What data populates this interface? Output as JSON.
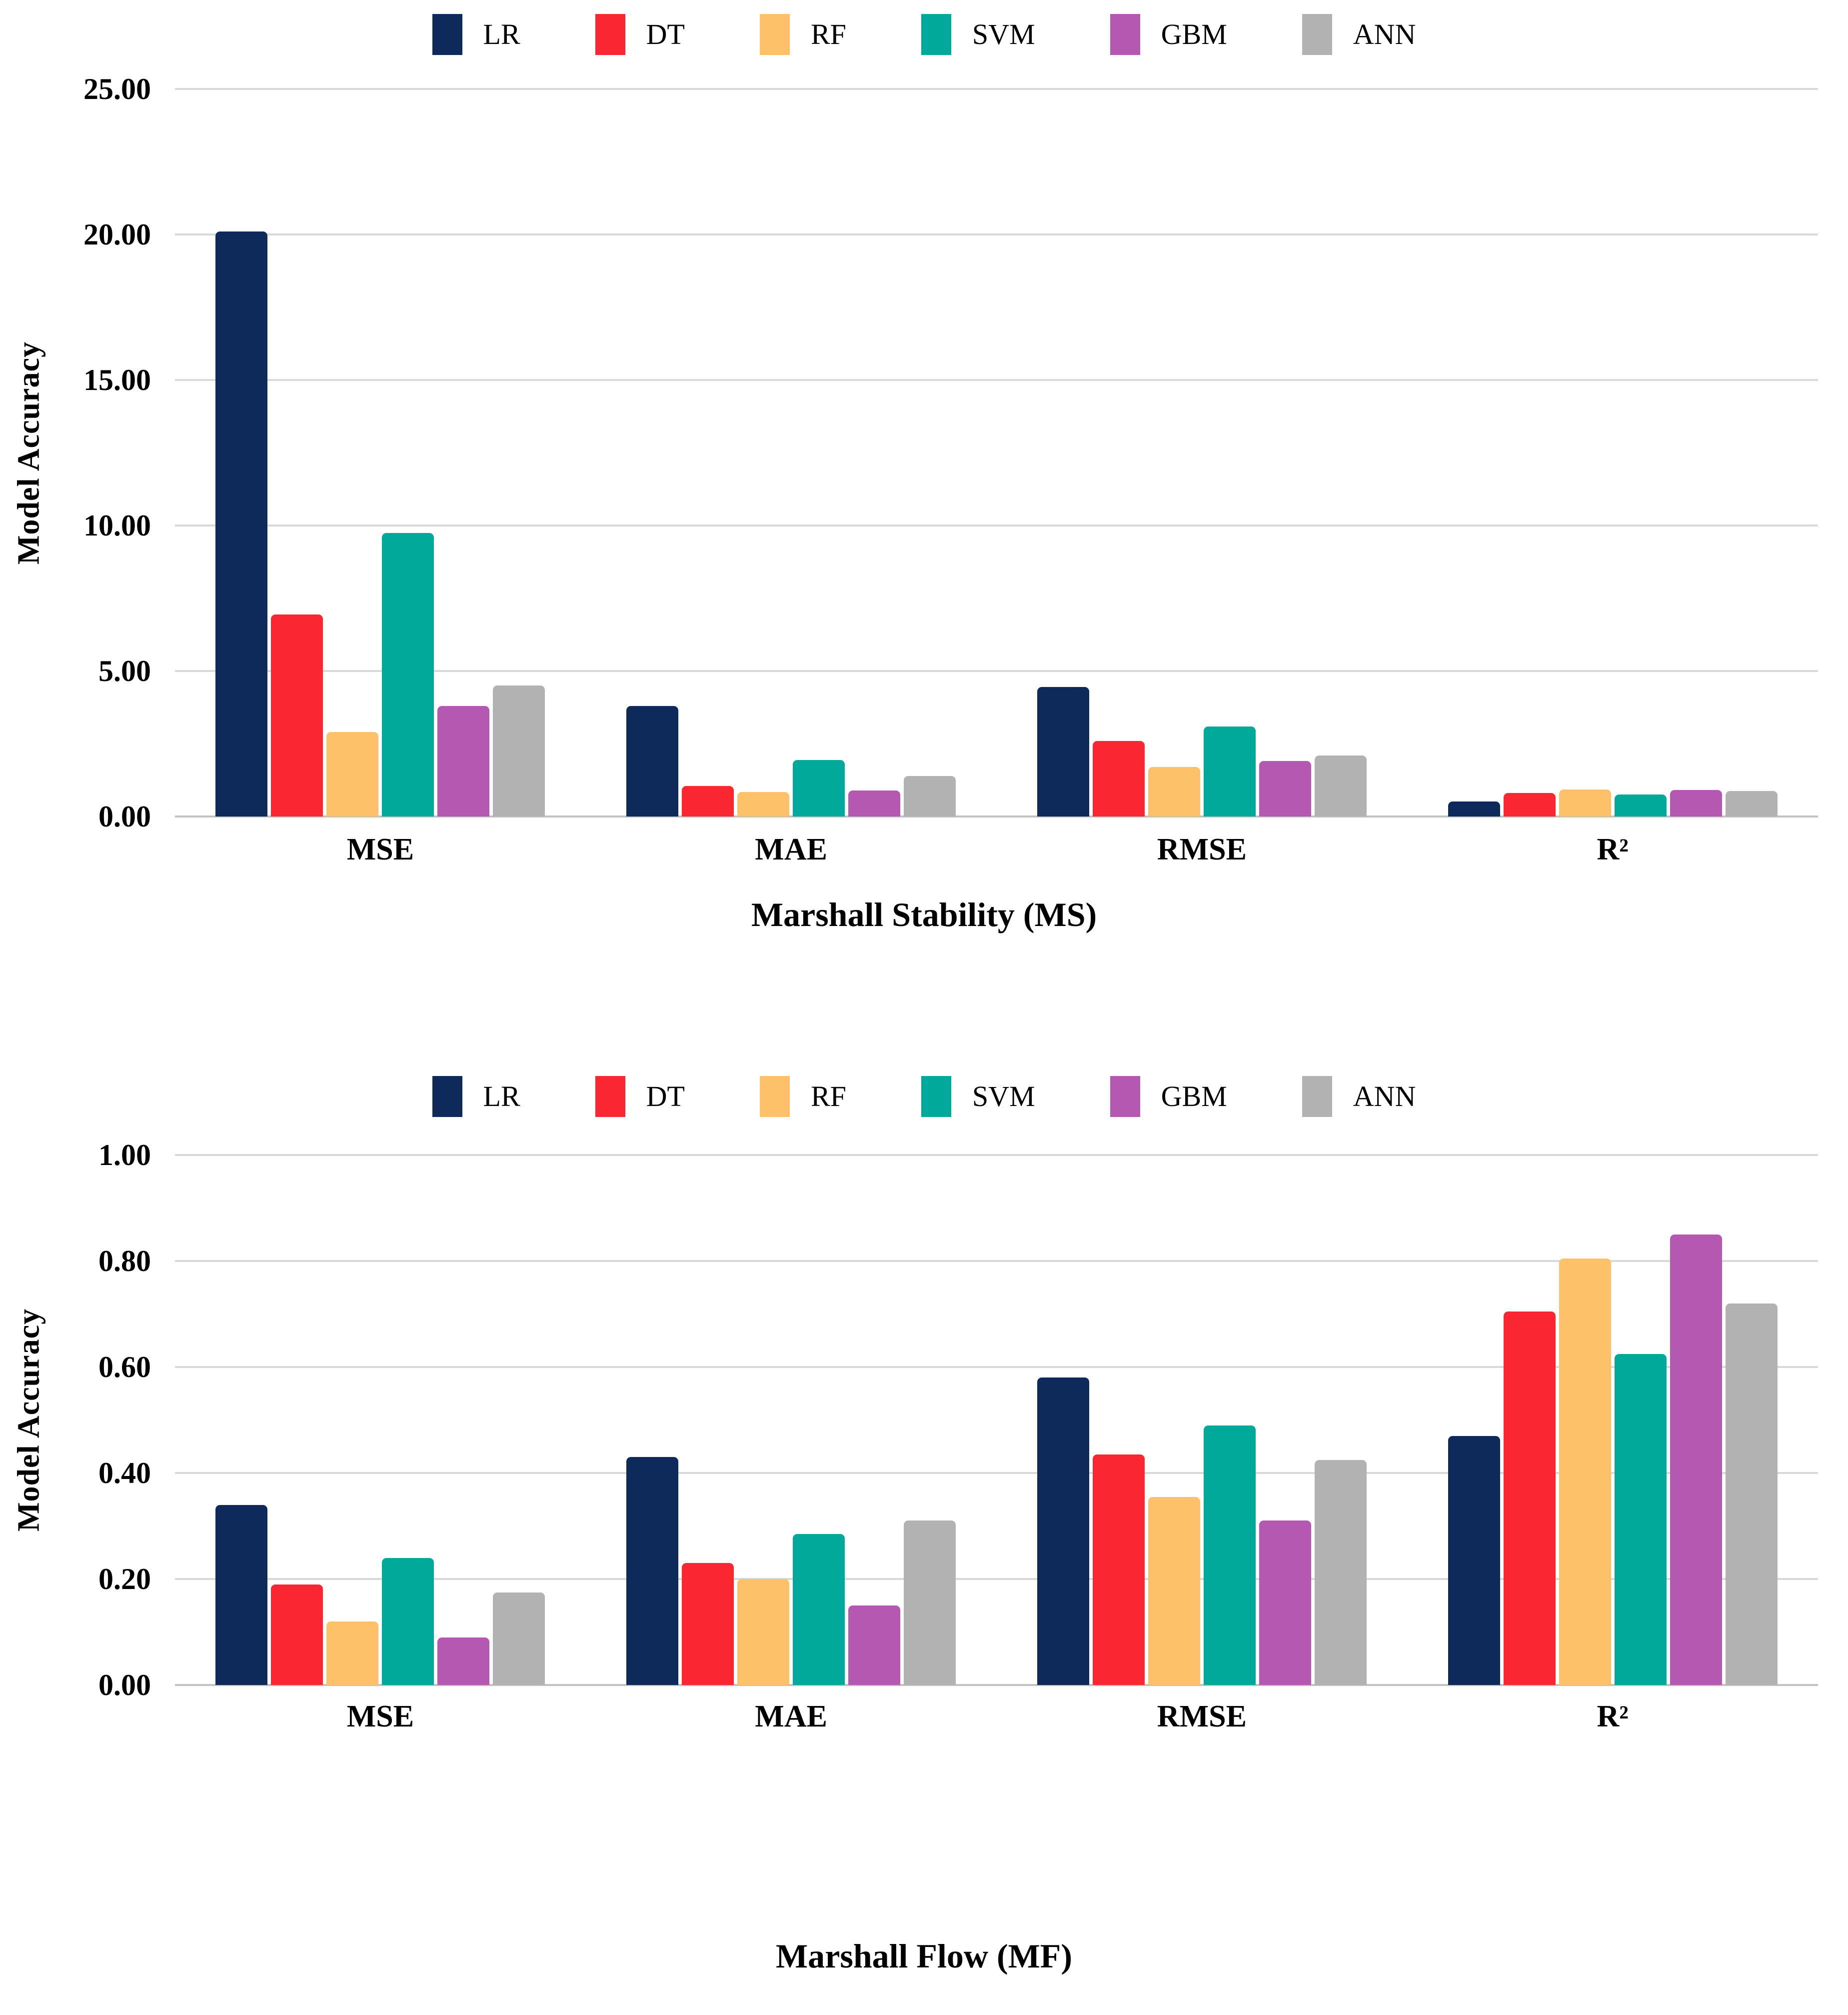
{
  "palette": {
    "LR": "#0d2a5a",
    "DT": "#fa2632",
    "RF": "#fcc169",
    "SVM": "#00a99a",
    "GBM": "#b558b1",
    "ANN": "#b2b2b2"
  },
  "style": {
    "gridline_color": "#d9d9d9",
    "baseline_color": "#c2c2c2",
    "text_color": "#000000",
    "background": "#ffffff"
  },
  "chart_data": [
    {
      "type": "bar",
      "title": "Marshall Stability (MS)",
      "ylabel": "Model Accuracy",
      "xlabel": "",
      "legend_position": "top-center",
      "grid": true,
      "ylim": [
        0,
        25
      ],
      "categories": [
        "MSE",
        "MAE",
        "RMSE",
        "R²"
      ],
      "yticks": [
        {
          "v": 25,
          "label": "25.00"
        },
        {
          "v": 20,
          "label": "20.00"
        },
        {
          "v": 15,
          "label": "15.00"
        },
        {
          "v": 10,
          "label": "10.00"
        },
        {
          "v": 5,
          "label": "5.00"
        },
        {
          "v": 0,
          "label": "0.00"
        }
      ],
      "series": [
        {
          "name": "LR",
          "values": [
            20.1,
            3.8,
            4.45,
            0.51
          ]
        },
        {
          "name": "DT",
          "values": [
            6.95,
            1.05,
            2.6,
            0.81
          ]
        },
        {
          "name": "RF",
          "values": [
            2.9,
            0.85,
            1.7,
            0.92
          ]
        },
        {
          "name": "SVM",
          "values": [
            9.75,
            1.95,
            3.1,
            0.75
          ]
        },
        {
          "name": "GBM",
          "values": [
            3.8,
            0.9,
            1.9,
            0.91
          ]
        },
        {
          "name": "ANN",
          "values": [
            4.5,
            1.4,
            2.1,
            0.88
          ]
        }
      ]
    },
    {
      "type": "bar",
      "title": "Marshall Flow (MF)",
      "ylabel": "Model Accuracy",
      "xlabel": "",
      "legend_position": "top-center",
      "grid": true,
      "ylim": [
        0,
        1
      ],
      "categories": [
        "MSE",
        "MAE",
        "RMSE",
        "R²"
      ],
      "yticks": [
        {
          "v": 1.0,
          "label": "1.00"
        },
        {
          "v": 0.8,
          "label": "0.80"
        },
        {
          "v": 0.6,
          "label": "0.60"
        },
        {
          "v": 0.4,
          "label": "0.40"
        },
        {
          "v": 0.2,
          "label": "0.20"
        },
        {
          "v": 0,
          "label": "0.00"
        }
      ],
      "series": [
        {
          "name": "LR",
          "values": [
            0.34,
            0.43,
            0.58,
            0.47
          ]
        },
        {
          "name": "DT",
          "values": [
            0.19,
            0.23,
            0.435,
            0.705
          ]
        },
        {
          "name": "RF",
          "values": [
            0.12,
            0.2,
            0.355,
            0.805
          ]
        },
        {
          "name": "SVM",
          "values": [
            0.24,
            0.285,
            0.49,
            0.625
          ]
        },
        {
          "name": "GBM",
          "values": [
            0.09,
            0.15,
            0.31,
            0.85
          ]
        },
        {
          "name": "ANN",
          "values": [
            0.175,
            0.31,
            0.425,
            0.72
          ]
        }
      ]
    }
  ]
}
